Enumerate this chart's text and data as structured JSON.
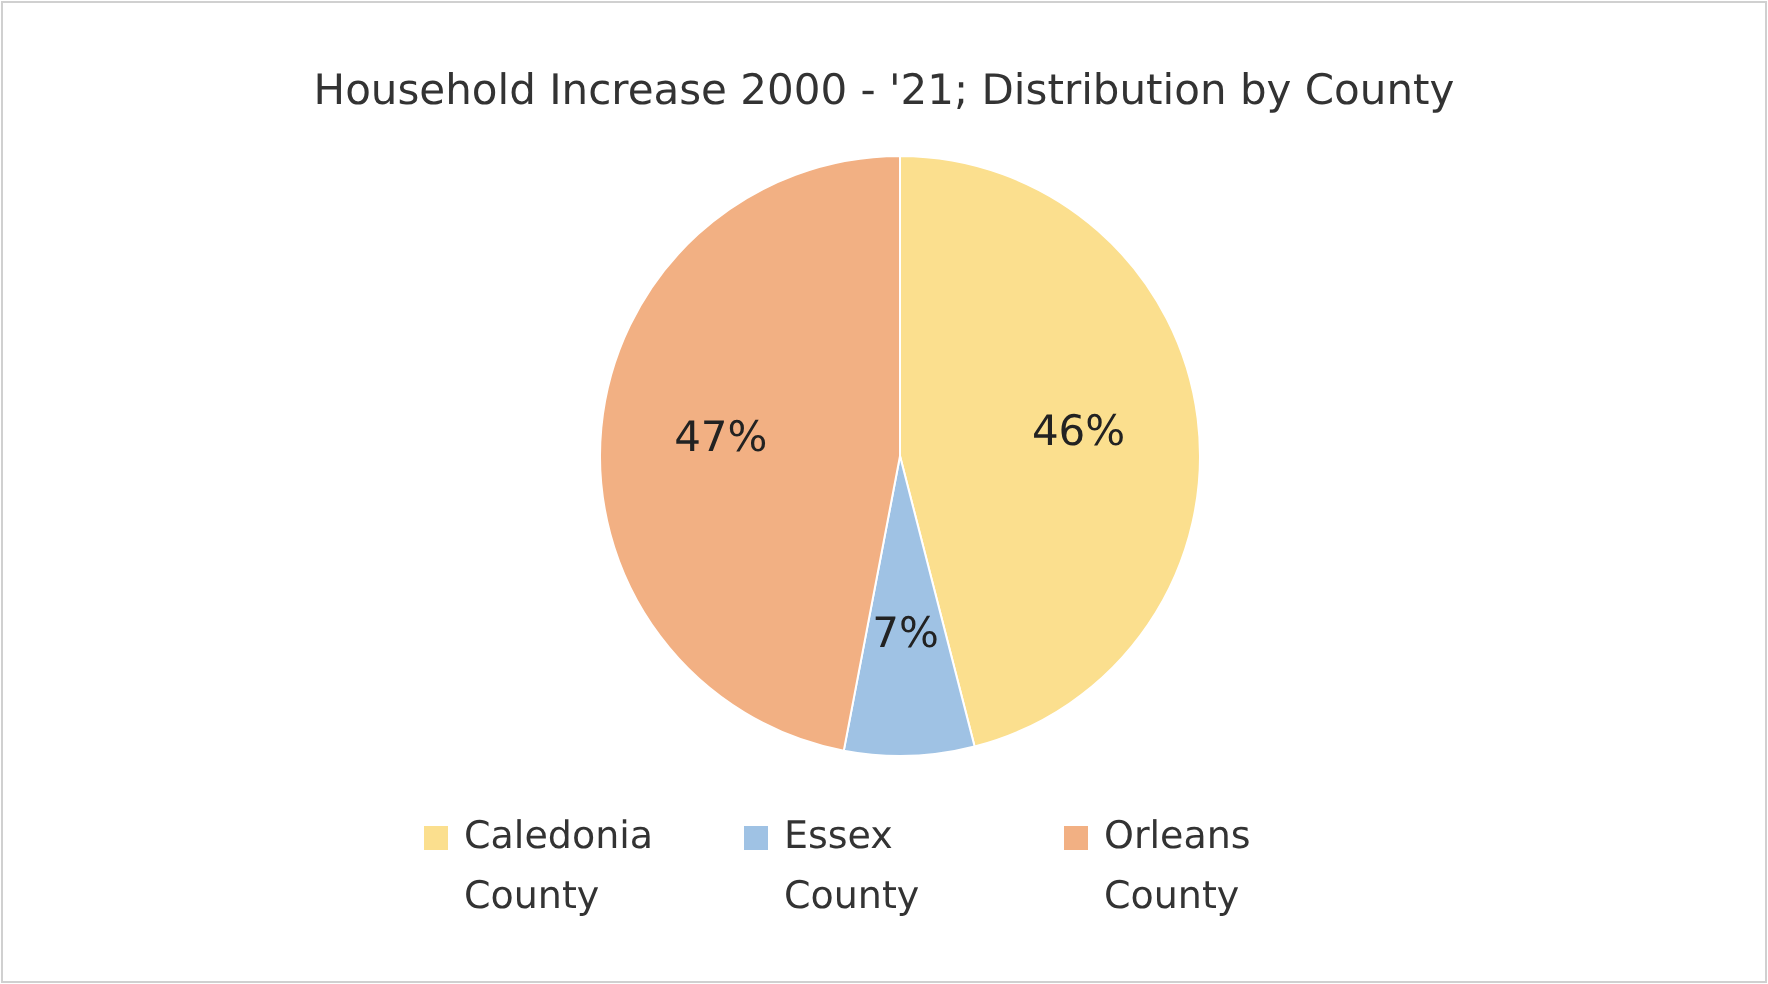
{
  "chart_data": {
    "type": "pie",
    "title": "Household Increase 2000 - '21; Distribution by County",
    "categories": [
      "Caledonia County",
      "Essex County",
      "Orleans County"
    ],
    "values": [
      46,
      7,
      47
    ],
    "colors": [
      "#fbdf8e",
      "#9fc2e4",
      "#f2b083"
    ],
    "value_labels": [
      "46%",
      "7%",
      "47%"
    ],
    "legend": "bottom"
  }
}
